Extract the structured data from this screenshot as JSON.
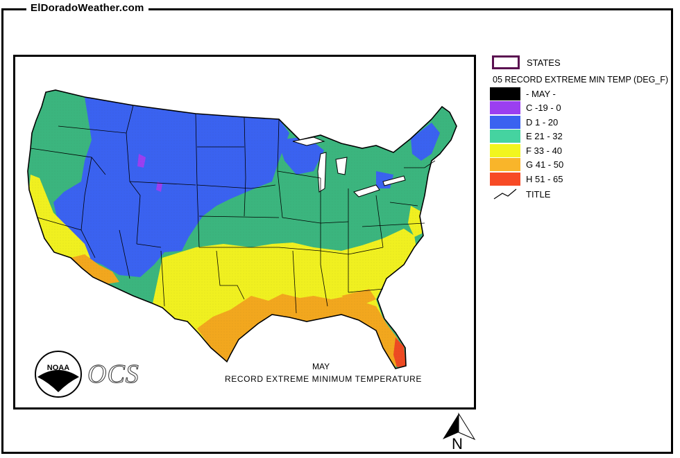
{
  "header": {
    "site_title": "ElDoradoWeather.com"
  },
  "map": {
    "caption_month": "MAY",
    "caption_title": "RECORD EXTREME MINIMUM TEMPERATURE",
    "logos": {
      "noaa_text": "NOAA",
      "ocs_text": "OCS"
    },
    "north_label": "N"
  },
  "legend": {
    "states_label": "STATES",
    "layer_title": "05 RECORD EXTREME MIN TEMP (DEG_F)",
    "items": [
      {
        "label": "- MAY -",
        "color": "#000000"
      },
      {
        "label": "C -19 - 0",
        "color": "#9b3ff0"
      },
      {
        "label": "D 1 - 20",
        "color": "#3a62f0"
      },
      {
        "label": "E 21 - 32",
        "color": "#45d3a0"
      },
      {
        "label": "F 33 - 40",
        "color": "#f2f51e"
      },
      {
        "label": "G 41 - 50",
        "color": "#f9b52a"
      },
      {
        "label": "H 51 - 65",
        "color": "#f74a25"
      }
    ],
    "title_label": "TITLE"
  },
  "colors": {
    "zone_d": "#3a62f0",
    "zone_e": "#3bb57e",
    "zone_f": "#f0f020",
    "zone_g": "#f2a71e",
    "zone_h": "#ee4a22",
    "zone_c": "#9b3ff0",
    "states_outline": "#5a1050"
  }
}
